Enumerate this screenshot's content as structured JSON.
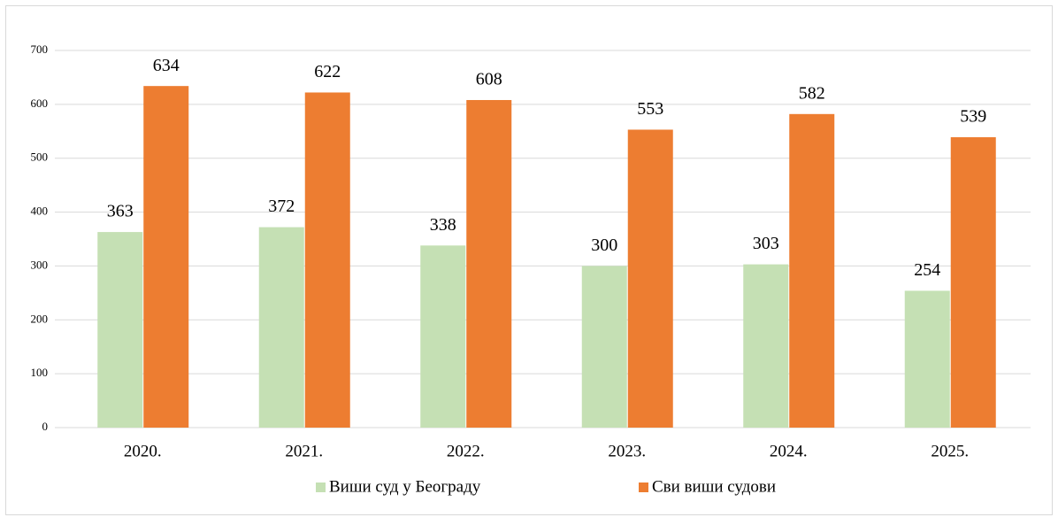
{
  "chart_data": {
    "type": "bar",
    "categories": [
      "2020.",
      "2021.",
      "2022.",
      "2023.",
      "2024.",
      "2025."
    ],
    "series": [
      {
        "name": "Виши суд у Београду",
        "color": "#c5e0b4",
        "values": [
          363,
          372,
          338,
          300,
          303,
          254
        ]
      },
      {
        "name": "Сви виши судови",
        "color": "#ed7d31",
        "values": [
          634,
          622,
          608,
          553,
          582,
          539
        ]
      }
    ],
    "ylim": [
      0,
      700
    ],
    "yticks": [
      0,
      100,
      200,
      300,
      400,
      500,
      600,
      700
    ],
    "grid": true,
    "legend": "bottom"
  }
}
